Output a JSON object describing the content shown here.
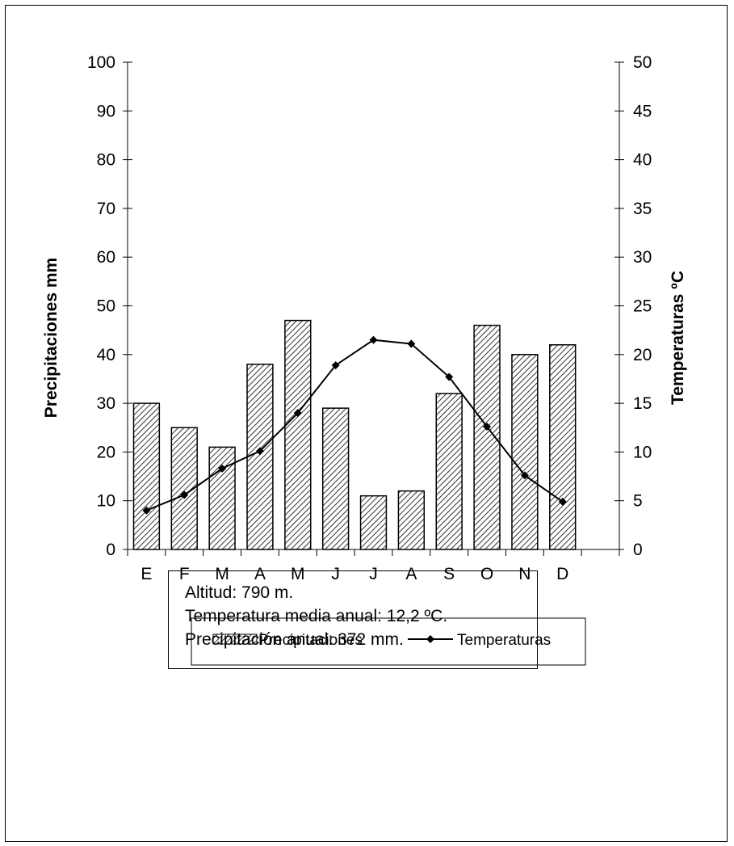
{
  "chart_data": {
    "type": "bar+line",
    "categories": [
      "E",
      "F",
      "M",
      "A",
      "M",
      "J",
      "J",
      "A",
      "S",
      "O",
      "N",
      "D"
    ],
    "series": [
      {
        "name": "Precipitaciones",
        "type": "bar",
        "axis": "left",
        "values": [
          30,
          25,
          21,
          38,
          47,
          29,
          11,
          12,
          32,
          46,
          40,
          42
        ]
      },
      {
        "name": "Temperaturas",
        "type": "line",
        "axis": "right",
        "values": [
          4.0,
          5.6,
          8.3,
          10.1,
          14.0,
          18.9,
          21.5,
          21.1,
          17.7,
          12.6,
          7.6,
          4.9
        ]
      }
    ],
    "ylabel": "Precipitaciones mm",
    "y2label": "Temperaturas ºC",
    "ylim": [
      0,
      100
    ],
    "y2lim": [
      0,
      50
    ],
    "yticks": [
      "0",
      "10",
      "20",
      "30",
      "40",
      "50",
      "60",
      "70",
      "80",
      "90",
      "100"
    ],
    "y2ticks": [
      "0",
      "5",
      "10",
      "15",
      "20",
      "25",
      "30",
      "35",
      "40",
      "45",
      "50"
    ],
    "grid": false,
    "legend": "bottom",
    "bar_pattern": "diagonal-hatch",
    "colors": {
      "bar_fill": "#ffffff",
      "bar_hatch": "#000000",
      "line": "#000000"
    }
  },
  "info": {
    "altitud": "Altitud: 790 m.",
    "temperatura": "Temperatura media anual: 12,2 ºC.",
    "precipitacion": "Precipitación anual: 372 mm."
  }
}
